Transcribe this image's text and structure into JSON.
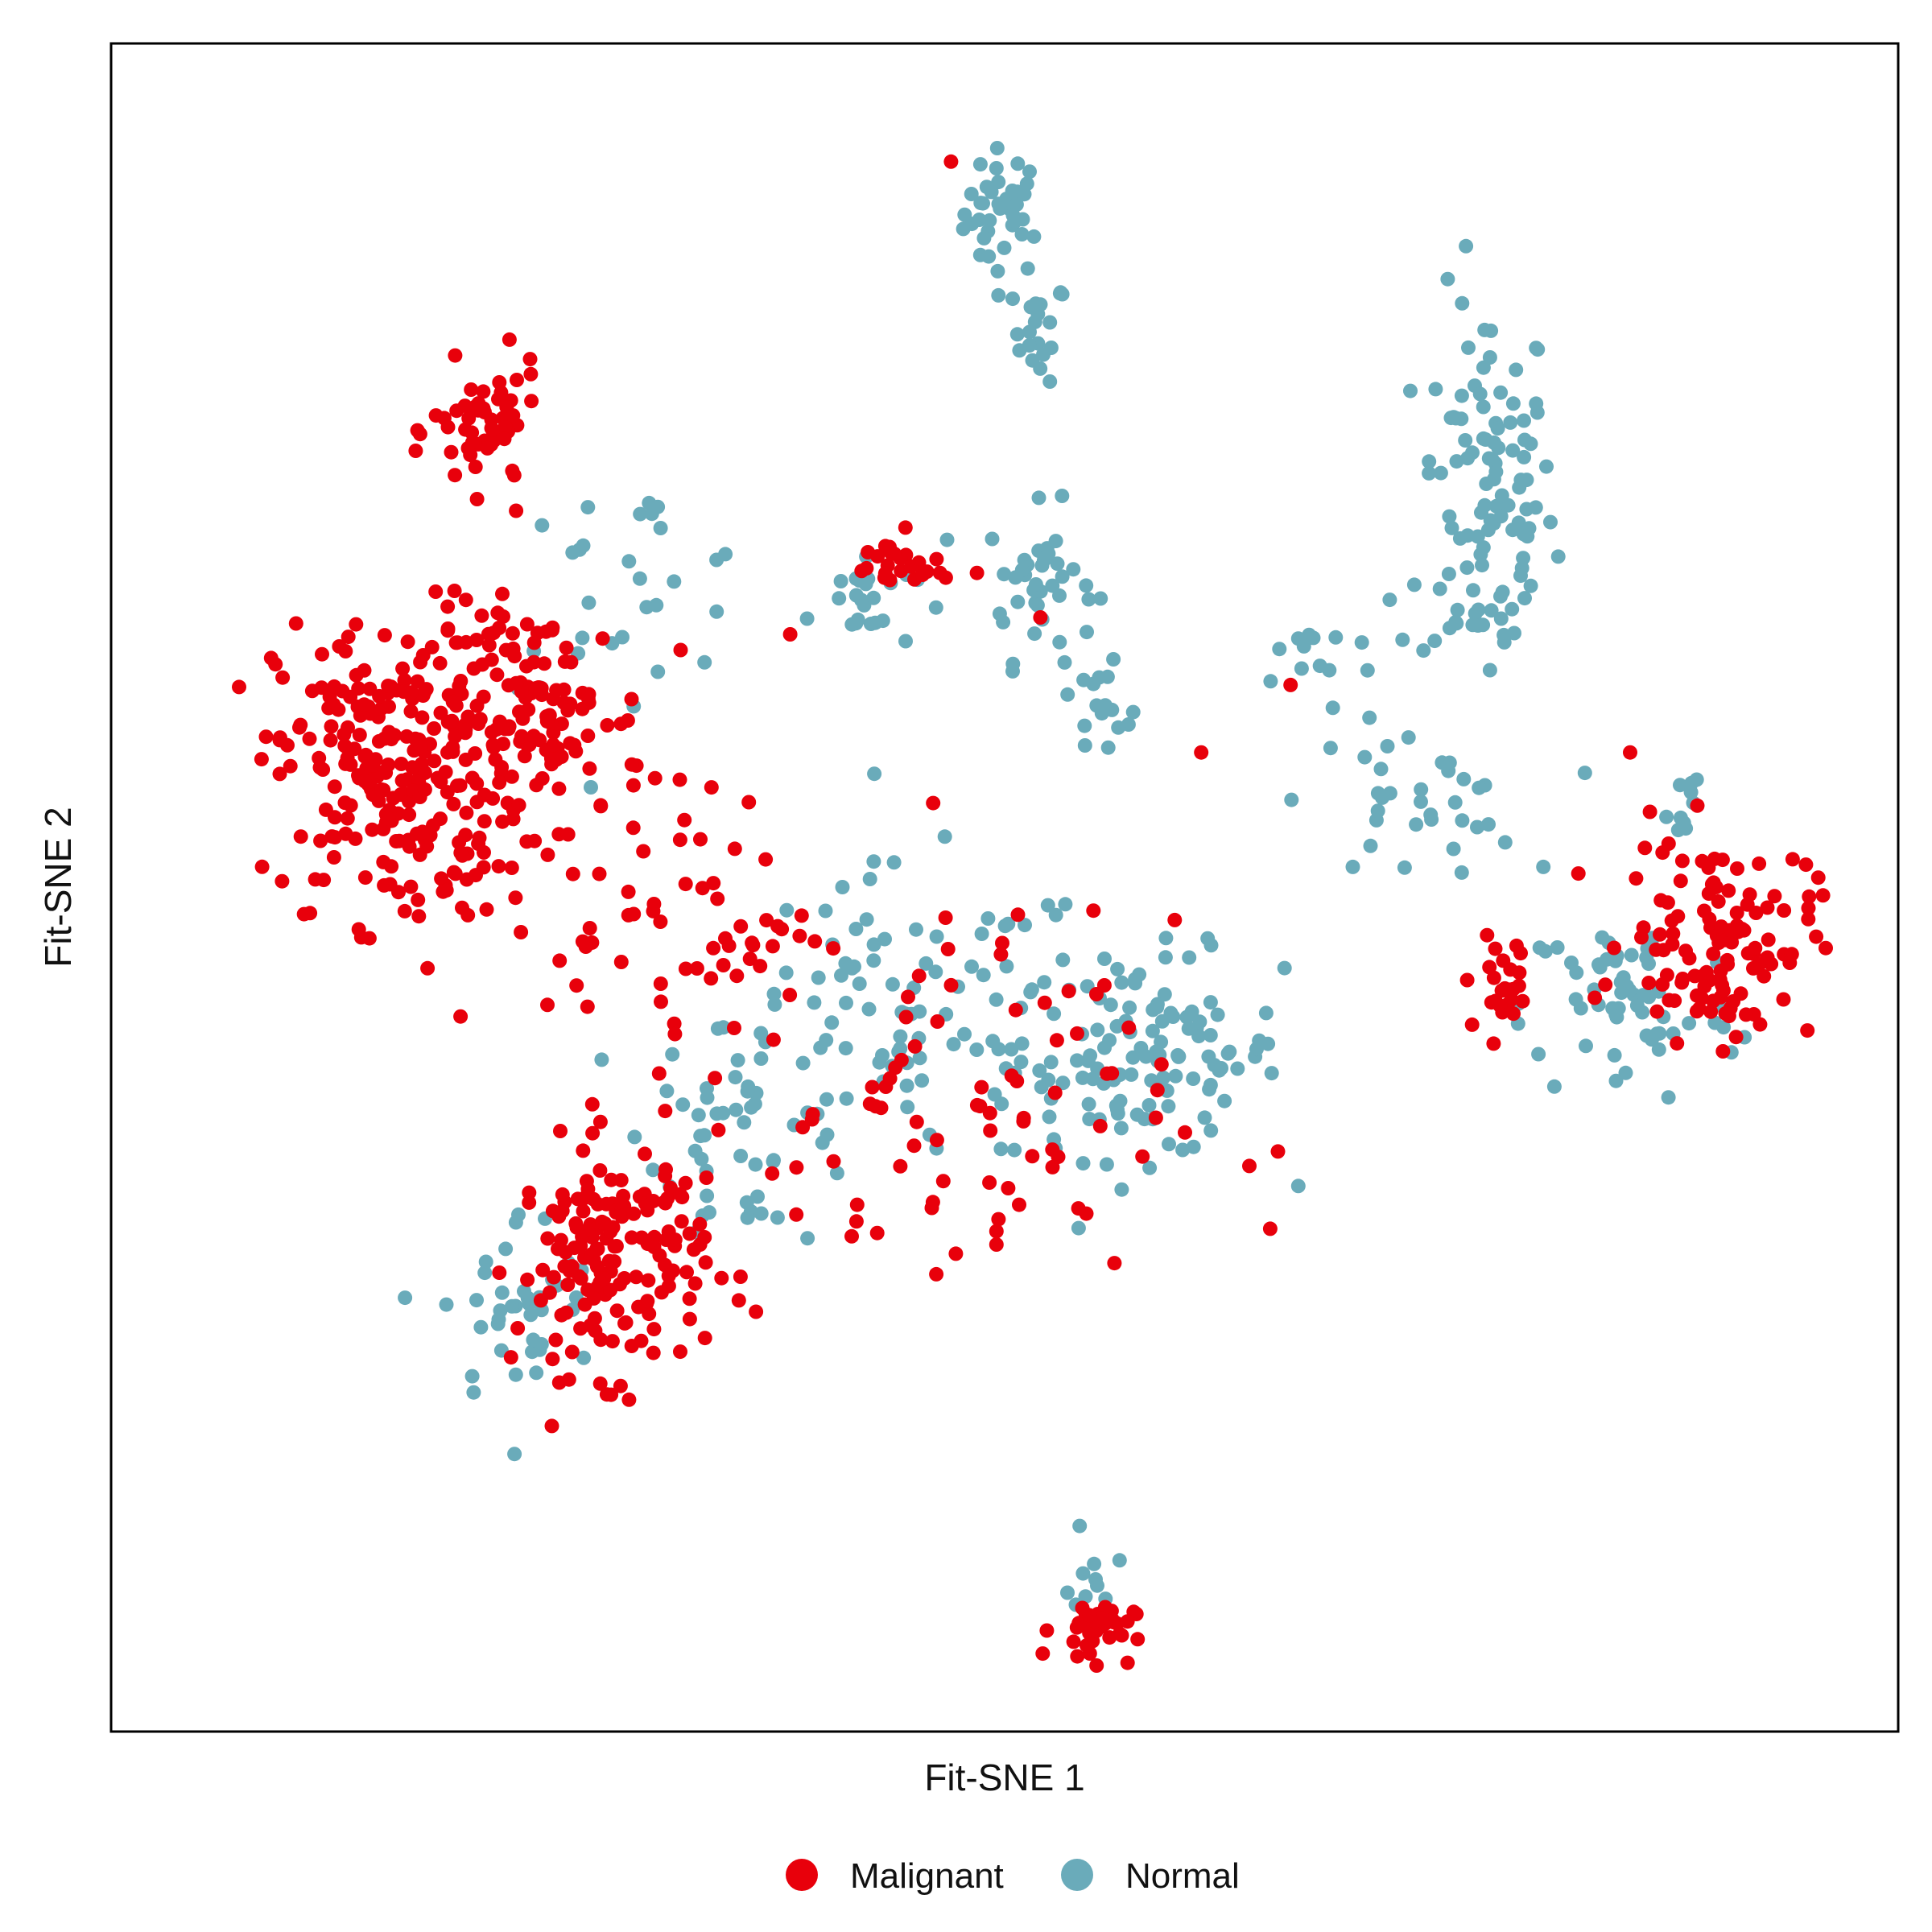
{
  "chart_data": {
    "type": "scatter",
    "title": "",
    "xlabel": "Fit-SNE 1",
    "ylabel": "Fit-SNE 2",
    "xlim": [
      0,
      100
    ],
    "ylim": [
      0,
      100
    ],
    "grid": false,
    "ticks": false,
    "legend_position": "bottom",
    "series": [
      {
        "name": "Malignant",
        "color": "#E8000B",
        "clusters": [
          {
            "center": [
              16,
              57
            ],
            "spread": [
              4.5,
              6.0
            ],
            "count": 260
          },
          {
            "center": [
              24,
              60
            ],
            "spread": [
              4.0,
              4.5
            ],
            "count": 120
          },
          {
            "center": [
              28,
              28
            ],
            "spread": [
              3.5,
              4.5
            ],
            "count": 170
          },
          {
            "center": [
              21,
              77
            ],
            "spread": [
              2.0,
              2.5
            ],
            "count": 60
          },
          {
            "center": [
              44,
              69
            ],
            "spread": [
              2.0,
              1.2
            ],
            "count": 25
          },
          {
            "center": [
              90,
              47
            ],
            "spread": [
              3.5,
              4.0
            ],
            "count": 120
          },
          {
            "center": [
              55,
              6
            ],
            "spread": [
              1.5,
              1.2
            ],
            "count": 35
          },
          {
            "center": [
              46,
              36
            ],
            "spread": [
              9.0,
              8.0
            ],
            "count": 90
          },
          {
            "center": [
              78,
              44
            ],
            "spread": [
              1.5,
              2.0
            ],
            "count": 25
          },
          {
            "center": [
              32,
              48
            ],
            "spread": [
              5.0,
              5.0
            ],
            "count": 60
          }
        ],
        "points": [
          [
            47,
            93
          ],
          [
            61,
            58
          ],
          [
            56,
            39
          ],
          [
            46,
            55
          ],
          [
            38,
            65
          ],
          [
            66,
            62
          ],
          [
            52,
            66
          ],
          [
            85,
            58
          ]
        ]
      },
      {
        "name": "Normal",
        "color": "#6AABBA",
        "clusters": [
          {
            "center": [
              50,
              90
            ],
            "spread": [
              1.5,
              2.5
            ],
            "count": 40
          },
          {
            "center": [
              52,
              83
            ],
            "spread": [
              1.0,
              2.0
            ],
            "count": 20
          },
          {
            "center": [
              77,
              73
            ],
            "spread": [
              2.5,
              8.0
            ],
            "count": 110
          },
          {
            "center": [
              52,
              68
            ],
            "spread": [
              2.0,
              3.0
            ],
            "count": 40
          },
          {
            "center": [
              42,
              67
            ],
            "spread": [
              2.0,
              2.0
            ],
            "count": 25
          },
          {
            "center": [
              58,
              40
            ],
            "spread": [
              5.0,
              4.0
            ],
            "count": 120
          },
          {
            "center": [
              45,
              42
            ],
            "spread": [
              7.0,
              6.0
            ],
            "count": 90
          },
          {
            "center": [
              36,
              36
            ],
            "spread": [
              4.0,
              5.0
            ],
            "count": 50
          },
          {
            "center": [
              29,
              68
            ],
            "spread": [
              5.0,
              4.0
            ],
            "count": 30
          },
          {
            "center": [
              73,
              55
            ],
            "spread": [
              4.0,
              3.0
            ],
            "count": 35
          },
          {
            "center": [
              67,
              64
            ],
            "spread": [
              3.0,
              2.0
            ],
            "count": 15
          },
          {
            "center": [
              55,
              60
            ],
            "spread": [
              2.0,
              2.0
            ],
            "count": 15
          },
          {
            "center": [
              85,
              43
            ],
            "spread": [
              4.0,
              4.0
            ],
            "count": 60
          },
          {
            "center": [
              23,
              25
            ],
            "spread": [
              3.0,
              4.0
            ],
            "count": 40
          },
          {
            "center": [
              88,
              55
            ],
            "spread": [
              0.6,
              1.8
            ],
            "count": 10
          },
          {
            "center": [
              55,
              10
            ],
            "spread": [
              0.8,
              2.0
            ],
            "count": 10
          }
        ],
        "points": []
      }
    ]
  }
}
